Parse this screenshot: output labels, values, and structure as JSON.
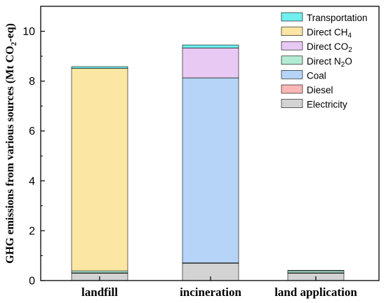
{
  "chart_data": {
    "type": "bar",
    "stacked": true,
    "categories": [
      "landfill",
      "incineration",
      "land application"
    ],
    "ylabel": {
      "prefix": "GHG emissions from various sources (Mt CO",
      "sub": "2",
      "suffix": "-eq)"
    },
    "ylim": [
      0,
      11
    ],
    "yticks": [
      0,
      2,
      4,
      6,
      8,
      10
    ],
    "legend_position": "top-right",
    "series": [
      {
        "name": "Electricity",
        "label_main": "Electricity",
        "label_sub": "",
        "color": "#d3d3d3",
        "values": [
          0.3,
          0.7,
          0.3
        ]
      },
      {
        "name": "Diesel",
        "label_main": "Diesel",
        "label_sub": "",
        "color": "#ffb6b6",
        "values": [
          0.01,
          0.01,
          0.01
        ]
      },
      {
        "name": "Coal",
        "label_main": "Coal",
        "label_sub": "",
        "color": "#b5d4f7",
        "values": [
          0.0,
          7.42,
          0.0
        ]
      },
      {
        "name": "Direct N2O",
        "label_main": "Direct N",
        "label_sub": "2",
        "label_tail": "O",
        "color": "#b3ecd2",
        "values": [
          0.08,
          0.0,
          0.08
        ]
      },
      {
        "name": "Direct CO2",
        "label_main": "Direct CO",
        "label_sub": "2",
        "label_tail": "",
        "color": "#e8c9f3",
        "values": [
          0.0,
          1.2,
          0.0
        ]
      },
      {
        "name": "Direct CH4",
        "label_main": "Direct CH",
        "label_sub": "4",
        "label_tail": "",
        "color": "#fce6a4",
        "values": [
          8.12,
          0.0,
          0.0
        ]
      },
      {
        "name": "Transportation",
        "label_main": "Transportation",
        "label_sub": "",
        "color": "#6ff0ee",
        "values": [
          0.07,
          0.12,
          0.02
        ]
      }
    ]
  }
}
